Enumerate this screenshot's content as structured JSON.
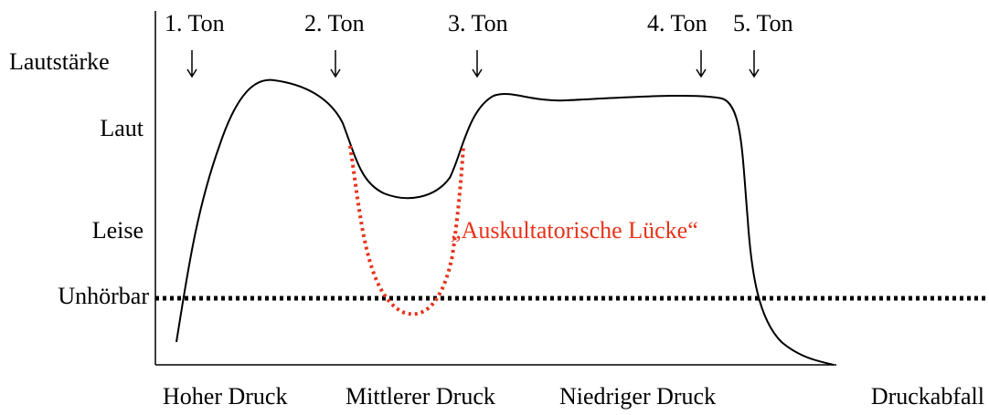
{
  "y_labels": [
    "Lautstärke",
    "Laut",
    "Leise",
    "Unhörbar"
  ],
  "tones": [
    "1. Ton",
    "2. Ton",
    "3. Ton",
    "4. Ton",
    "5. Ton"
  ],
  "gap_label": "„Auskultatorische Lücke“",
  "x_labels": [
    "Hoher Druck",
    "Mittlerer Druck",
    "Niedriger Druck",
    "Druckabfall"
  ]
}
